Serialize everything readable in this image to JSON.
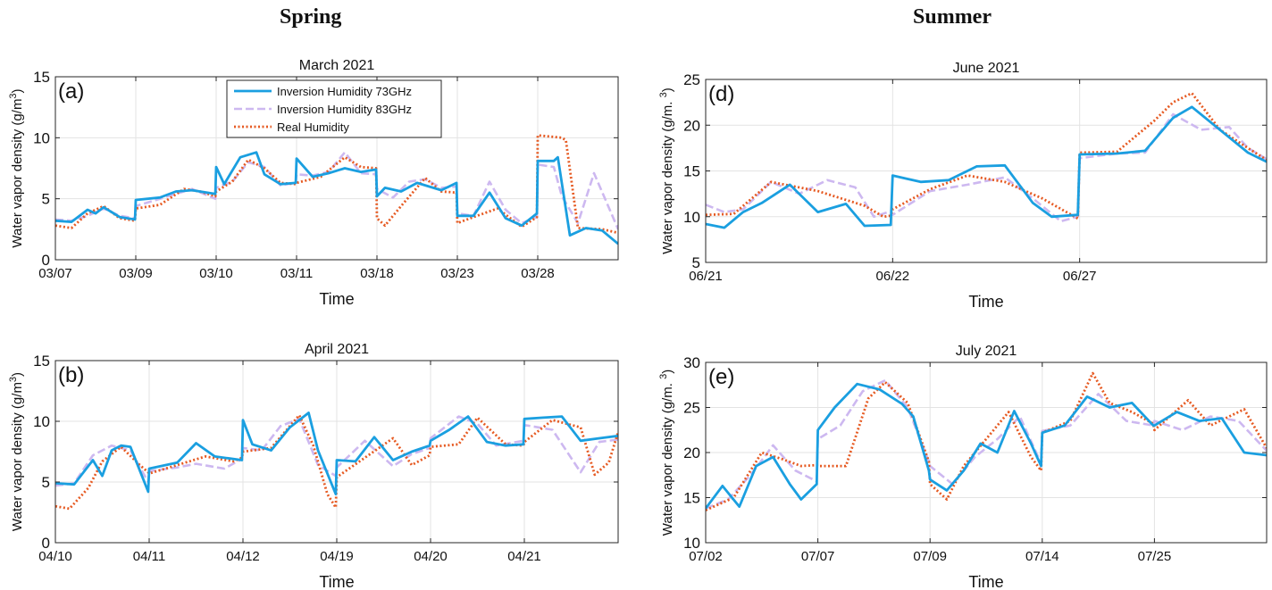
{
  "column_titles": {
    "left": "Spring",
    "right": "Summer"
  },
  "colors": {
    "inv73": "#1a9fe0",
    "inv83": "#cdb8f0",
    "real": "#e65a22",
    "grid": "#e3e3e3",
    "axis": "#262626"
  },
  "legend": {
    "entries": [
      "Inversion Humidity 73GHz",
      "Inversion Humidity 83GHz",
      "Real Humidity"
    ]
  },
  "chart_data": [
    {
      "id": "a",
      "type": "line",
      "title": "March 2021",
      "panel_label": "(a)",
      "xlabel": "Time",
      "ylabel": "Water vapor density (g/m",
      "ylim": [
        0,
        15
      ],
      "yticks": [
        0,
        5,
        10,
        15
      ],
      "xticklabels": [
        "03/07",
        "03/09",
        "03/10",
        "03/11",
        "03/18",
        "03/23",
        "03/28"
      ],
      "grid": true,
      "legend": "top-center",
      "series": [
        {
          "name": "Inversion Humidity 73GHz",
          "style": "solid",
          "x": [
            0,
            0.2,
            0.4,
            0.5,
            0.6,
            0.8,
            0.99,
            1.0,
            1.3,
            1.5,
            1.7,
            1.99,
            2.0,
            2.1,
            2.3,
            2.5,
            2.6,
            2.8,
            2.99,
            3.0,
            3.2,
            3.4,
            3.6,
            3.8,
            3.99,
            4.0,
            4.1,
            4.3,
            4.5,
            4.8,
            4.99,
            5.0,
            5.2,
            5.4,
            5.6,
            5.8,
            5.99,
            6.0,
            6.2,
            6.25,
            6.4,
            6.6,
            6.8,
            7.0
          ],
          "y": [
            3.2,
            3.1,
            4.1,
            3.8,
            4.3,
            3.5,
            3.3,
            4.9,
            5.1,
            5.6,
            5.7,
            5.4,
            7.6,
            6.2,
            8.4,
            8.8,
            7.0,
            6.2,
            6.3,
            8.3,
            6.8,
            7.1,
            7.5,
            7.2,
            7.4,
            5.2,
            5.9,
            5.6,
            6.3,
            5.7,
            6.3,
            3.6,
            3.6,
            5.5,
            3.4,
            2.8,
            3.8,
            8.1,
            8.1,
            8.4,
            2.0,
            2.6,
            2.4,
            1.3
          ]
        },
        {
          "name": "Inversion Humidity 83GHz",
          "style": "dashed",
          "x": [
            0,
            0.2,
            0.4,
            0.6,
            0.8,
            0.99,
            1.0,
            1.3,
            1.5,
            1.7,
            1.99,
            2.0,
            2.2,
            2.4,
            2.6,
            2.8,
            2.99,
            3.0,
            3.2,
            3.4,
            3.6,
            3.8,
            3.99,
            4.0,
            4.2,
            4.4,
            4.6,
            4.8,
            4.99,
            5.0,
            5.2,
            5.4,
            5.6,
            5.8,
            5.99,
            6.0,
            6.2,
            6.3,
            6.5,
            6.7,
            7.0
          ],
          "y": [
            3.3,
            3.2,
            3.6,
            4.2,
            3.6,
            3.4,
            4.4,
            5.0,
            5.4,
            5.8,
            5.0,
            5.9,
            6.4,
            8.0,
            7.6,
            6.1,
            6.3,
            7.0,
            6.9,
            7.2,
            8.8,
            7.1,
            7.0,
            5.8,
            5.1,
            6.4,
            6.6,
            5.9,
            6.0,
            3.8,
            3.6,
            6.4,
            4.1,
            3.0,
            3.5,
            7.8,
            7.6,
            5.2,
            3.0,
            7.1,
            2.5
          ]
        },
        {
          "name": "Real Humidity",
          "style": "dotted",
          "x": [
            0,
            0.2,
            0.4,
            0.6,
            0.8,
            0.99,
            1.0,
            1.3,
            1.6,
            1.8,
            1.99,
            2.0,
            2.2,
            2.4,
            2.6,
            2.8,
            2.99,
            3.0,
            3.3,
            3.6,
            3.8,
            3.99,
            4.0,
            4.1,
            4.3,
            4.6,
            4.8,
            4.99,
            5.0,
            5.2,
            5.5,
            5.8,
            5.99,
            6.0,
            6.3,
            6.35,
            6.5,
            6.8,
            7.0
          ],
          "y": [
            2.8,
            2.6,
            3.8,
            4.4,
            3.4,
            3.2,
            4.2,
            4.5,
            5.8,
            5.6,
            5.2,
            5.6,
            6.4,
            8.2,
            7.5,
            6.3,
            6.2,
            6.3,
            6.8,
            8.4,
            7.6,
            7.5,
            3.4,
            2.8,
            4.4,
            6.7,
            5.6,
            5.5,
            3.0,
            3.5,
            4.2,
            2.7,
            3.5,
            10.2,
            10.0,
            9.8,
            2.6,
            2.5,
            2.2
          ]
        }
      ]
    },
    {
      "id": "b",
      "type": "line",
      "title": "April 2021",
      "panel_label": "(b)",
      "xlabel": "Time",
      "ylabel": "Water vapor density (g/m",
      "ylim": [
        0,
        15
      ],
      "yticks": [
        0,
        5,
        10,
        15
      ],
      "xticklabels": [
        "04/10",
        "04/11",
        "04/12",
        "04/19",
        "04/20",
        "04/21"
      ],
      "grid": true,
      "series": [
        {
          "name": "Inversion Humidity 73GHz",
          "style": "solid",
          "x": [
            0,
            0.2,
            0.4,
            0.5,
            0.6,
            0.7,
            0.8,
            0.99,
            1.0,
            1.3,
            1.5,
            1.7,
            1.99,
            2.0,
            2.1,
            2.3,
            2.5,
            2.7,
            2.8,
            2.99,
            3.0,
            3.2,
            3.4,
            3.6,
            3.8,
            3.99,
            4.0,
            4.2,
            4.4,
            4.6,
            4.8,
            4.99,
            5.0,
            5.2,
            5.4,
            5.6,
            5.8,
            6.0
          ],
          "y": [
            4.9,
            4.8,
            6.8,
            5.5,
            7.6,
            8.0,
            7.9,
            4.2,
            6.1,
            6.6,
            8.2,
            7.1,
            6.8,
            10.1,
            8.1,
            7.6,
            9.5,
            10.7,
            7.6,
            4.0,
            6.8,
            6.7,
            8.7,
            6.8,
            7.5,
            8.0,
            8.4,
            9.3,
            10.4,
            8.3,
            8.0,
            8.1,
            10.2,
            10.3,
            10.4,
            8.4,
            8.6,
            8.8
          ]
        },
        {
          "name": "Inversion Humidity 83GHz",
          "style": "dashed",
          "x": [
            0,
            0.2,
            0.4,
            0.6,
            0.8,
            0.99,
            1.0,
            1.3,
            1.5,
            1.8,
            1.99,
            2.0,
            2.2,
            2.4,
            2.6,
            2.8,
            2.99,
            3.0,
            3.3,
            3.6,
            3.8,
            3.99,
            4.0,
            4.3,
            4.5,
            4.7,
            4.99,
            5.0,
            5.3,
            5.6,
            5.8,
            6.0
          ],
          "y": [
            4.7,
            4.9,
            7.2,
            8.0,
            7.6,
            5.0,
            5.9,
            6.2,
            6.5,
            6.1,
            6.9,
            7.8,
            7.6,
            9.6,
            10.2,
            6.4,
            5.5,
            6.2,
            8.4,
            6.3,
            7.3,
            7.8,
            8.6,
            10.4,
            9.8,
            8.0,
            8.4,
            9.7,
            9.3,
            5.8,
            8.3,
            8.5
          ]
        },
        {
          "name": "Real Humidity",
          "style": "dotted",
          "x": [
            0,
            0.15,
            0.35,
            0.5,
            0.7,
            0.9,
            0.99,
            1.0,
            1.3,
            1.6,
            1.9,
            1.99,
            2.0,
            2.3,
            2.6,
            2.75,
            2.9,
            2.99,
            3.0,
            3.3,
            3.6,
            3.8,
            3.99,
            4.0,
            4.3,
            4.5,
            4.8,
            4.99,
            5.0,
            5.3,
            5.6,
            5.75,
            5.9,
            6.0
          ],
          "y": [
            3.0,
            2.8,
            4.5,
            6.7,
            7.9,
            6.4,
            5.8,
            5.7,
            6.4,
            7.1,
            6.7,
            7.0,
            7.5,
            7.8,
            10.5,
            8.0,
            4.0,
            2.9,
            5.4,
            7.0,
            8.6,
            6.4,
            7.2,
            7.9,
            8.1,
            10.3,
            8.1,
            8.0,
            8.3,
            10.1,
            9.5,
            5.6,
            6.6,
            9.1
          ]
        }
      ]
    },
    {
      "id": "d",
      "type": "line",
      "title": "June 2021",
      "panel_label": "(d)",
      "xlabel": "Time",
      "ylabel": "Water vapor density (g/m. ",
      "ylim": [
        5,
        25
      ],
      "yticks": [
        5,
        10,
        15,
        20,
        25
      ],
      "xticklabels": [
        "06/21",
        "06/22",
        "06/27"
      ],
      "grid": true,
      "series": [
        {
          "name": "Inversion Humidity 73GHz",
          "style": "solid",
          "x": [
            0,
            0.1,
            0.2,
            0.3,
            0.45,
            0.6,
            0.75,
            0.85,
            0.99,
            1.0,
            1.15,
            1.3,
            1.45,
            1.6,
            1.75,
            1.85,
            1.99,
            2.0,
            2.2,
            2.35,
            2.5,
            2.6,
            2.75,
            2.9,
            3.0
          ],
          "y": [
            9.2,
            8.8,
            10.5,
            11.5,
            13.5,
            10.5,
            11.4,
            9.0,
            9.1,
            14.5,
            13.8,
            14.0,
            15.5,
            15.6,
            11.5,
            10.0,
            10.2,
            16.8,
            16.9,
            17.2,
            20.8,
            22.0,
            19.5,
            17.0,
            16.0
          ]
        },
        {
          "name": "Inversion Humidity 83GHz",
          "style": "dashed",
          "x": [
            0,
            0.1,
            0.2,
            0.35,
            0.5,
            0.65,
            0.8,
            0.9,
            0.99,
            1.0,
            1.2,
            1.4,
            1.6,
            1.75,
            1.9,
            1.99,
            2.0,
            2.2,
            2.35,
            2.5,
            2.65,
            2.8,
            2.9,
            3.0
          ],
          "y": [
            11.3,
            10.5,
            10.8,
            13.8,
            12.5,
            14.0,
            13.2,
            10.0,
            10.6,
            10.2,
            12.8,
            13.5,
            14.3,
            12.0,
            9.5,
            10.0,
            16.4,
            16.9,
            17.0,
            21.2,
            19.5,
            19.8,
            17.5,
            16.3
          ]
        },
        {
          "name": "Real Humidity",
          "style": "dotted",
          "x": [
            0,
            0.15,
            0.35,
            0.6,
            0.85,
            0.95,
            0.99,
            1.0,
            1.2,
            1.4,
            1.6,
            1.8,
            1.99,
            2.0,
            2.2,
            2.4,
            2.5,
            2.6,
            2.75,
            2.9,
            3.0
          ],
          "y": [
            10.2,
            10.3,
            13.8,
            12.8,
            11.2,
            10.0,
            10.1,
            10.8,
            13.0,
            14.5,
            13.8,
            12.0,
            9.8,
            17.0,
            17.1,
            20.5,
            22.5,
            23.5,
            19.5,
            17.5,
            16.2
          ]
        }
      ]
    },
    {
      "id": "e",
      "type": "line",
      "title": "July 2021",
      "panel_label": "(e)",
      "xlabel": "Time",
      "ylabel": "Water vapor density (g/m. ",
      "ylim": [
        10,
        30
      ],
      "yticks": [
        10,
        15,
        20,
        25,
        30
      ],
      "xticklabels": [
        "07/02",
        "07/07",
        "07/09",
        "07/14",
        "07/25"
      ],
      "grid": true,
      "series": [
        {
          "name": "Inversion Humidity 73GHz",
          "style": "solid",
          "x": [
            0,
            0.15,
            0.3,
            0.45,
            0.6,
            0.75,
            0.85,
            0.99,
            1.0,
            1.15,
            1.35,
            1.55,
            1.75,
            1.85,
            1.99,
            2.0,
            2.15,
            2.3,
            2.45,
            2.6,
            2.75,
            2.9,
            2.99,
            3.0,
            3.2,
            3.4,
            3.6,
            3.8,
            3.99,
            4.0,
            4.2,
            4.4,
            4.6,
            4.8,
            5.0
          ],
          "y": [
            13.8,
            16.3,
            14.0,
            18.5,
            19.5,
            16.5,
            14.8,
            16.5,
            22.5,
            25.0,
            27.6,
            27.0,
            25.4,
            24.0,
            18.0,
            17.0,
            15.8,
            18.0,
            21.0,
            20.0,
            24.6,
            21.0,
            18.5,
            22.2,
            23.0,
            26.2,
            25.0,
            25.5,
            23.0,
            23.0,
            24.5,
            23.5,
            23.8,
            20.0,
            19.7
          ]
        },
        {
          "name": "Inversion Humidity 83GHz",
          "style": "dashed",
          "x": [
            0,
            0.2,
            0.4,
            0.6,
            0.8,
            0.99,
            1.0,
            1.2,
            1.4,
            1.6,
            1.8,
            1.99,
            2.0,
            2.2,
            2.4,
            2.6,
            2.8,
            2.99,
            3.0,
            3.25,
            3.5,
            3.75,
            3.99,
            4.0,
            4.25,
            4.5,
            4.75,
            5.0
          ],
          "y": [
            13.8,
            14.8,
            17.5,
            20.8,
            18.0,
            16.8,
            21.5,
            23.0,
            26.8,
            28.0,
            25.0,
            19.0,
            18.5,
            16.5,
            19.5,
            21.5,
            24.0,
            18.8,
            22.4,
            23.0,
            26.5,
            23.5,
            23.0,
            23.5,
            22.5,
            24.0,
            23.5,
            20.2
          ]
        },
        {
          "name": "Real Humidity",
          "style": "dotted",
          "x": [
            0,
            0.25,
            0.5,
            0.7,
            0.85,
            0.99,
            1.0,
            1.25,
            1.45,
            1.6,
            1.8,
            1.99,
            2.0,
            2.15,
            2.3,
            2.5,
            2.7,
            2.9,
            2.99,
            3.0,
            3.25,
            3.45,
            3.6,
            3.8,
            3.99,
            4.0,
            4.3,
            4.5,
            4.8,
            5.0
          ],
          "y": [
            13.6,
            15.0,
            20.0,
            19.2,
            18.5,
            18.6,
            18.5,
            18.5,
            26.0,
            27.8,
            25.5,
            19.0,
            16.5,
            14.8,
            18.5,
            21.5,
            24.5,
            19.5,
            18.0,
            22.2,
            23.5,
            28.8,
            25.5,
            24.5,
            23.2,
            22.5,
            25.8,
            23.0,
            24.8,
            20.5
          ]
        }
      ]
    }
  ]
}
